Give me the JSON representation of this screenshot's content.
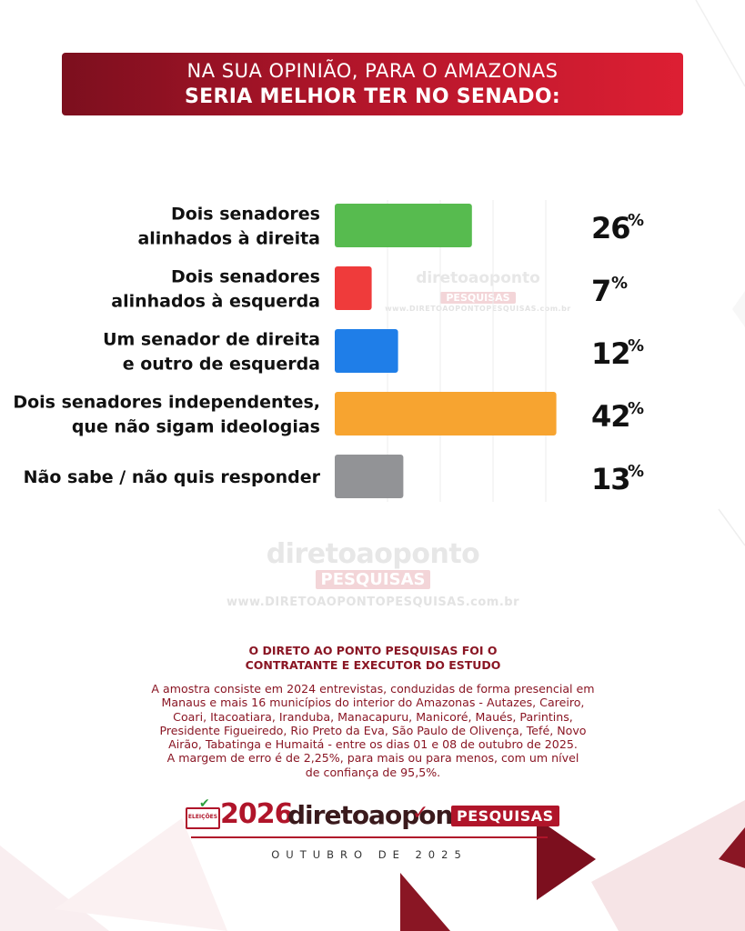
{
  "header": {
    "line1": "NA SUA OPINIÃO, PARA O AMAZONAS",
    "line2": "SERIA MELHOR TER NO SENADO:"
  },
  "watermark": {
    "brand": "diretoaoponto",
    "badge": "PESQUISAS",
    "url": "www.DIRETOAOPONTOPESQUISAS.com.br"
  },
  "contract_note": {
    "line1": "O DIRETO AO PONTO PESQUISAS FOI O",
    "line2": "CONTRATANTE E EXECUTOR DO ESTUDO"
  },
  "methodology": {
    "lines": [
      "A amostra consiste em 2024 entrevistas, conduzidas de forma presencial em",
      "Manaus e mais 16 municípios do interior do Amazonas - Autazes, Careiro,",
      "Coari, Itacoatiara, Iranduba, Manacapuru, Manicoré, Maués, Parintins,",
      "Presidente Figueiredo, Rio Preto da Eva, São Paulo de Olivença, Tefé, Novo",
      "Airão, Tabatinga e Humaitá - entre os dias 01 e 08 de outubro de 2025.",
      "A margem de erro é de 2,25%, para mais ou para menos, com um nível",
      "de confiança de 95,5%."
    ]
  },
  "footer": {
    "election_label": "ELEIÇÕES",
    "year": "2026",
    "brand": "diretoaoponto",
    "badge": "PESQUISAS",
    "date": "OUTUBRO DE 2025"
  },
  "chart_data": {
    "type": "bar",
    "orientation": "horizontal",
    "categories": [
      [
        "Dois senadores",
        "alinhados à direita"
      ],
      [
        "Dois senadores",
        "alinhados à esquerda"
      ],
      [
        "Um senador de direita",
        "e outro de esquerda"
      ],
      [
        "Dois senadores independentes,",
        "que não sigam ideologias"
      ],
      [
        "Não sabe / não quis responder"
      ]
    ],
    "values": [
      26,
      7,
      12,
      42,
      13
    ],
    "value_suffix": "%",
    "colors": [
      "#57bb4f",
      "#ef3b3b",
      "#1f7ee8",
      "#f7a430",
      "#929396"
    ],
    "xlim": [
      0,
      50
    ],
    "grid": true,
    "legend": "none"
  }
}
